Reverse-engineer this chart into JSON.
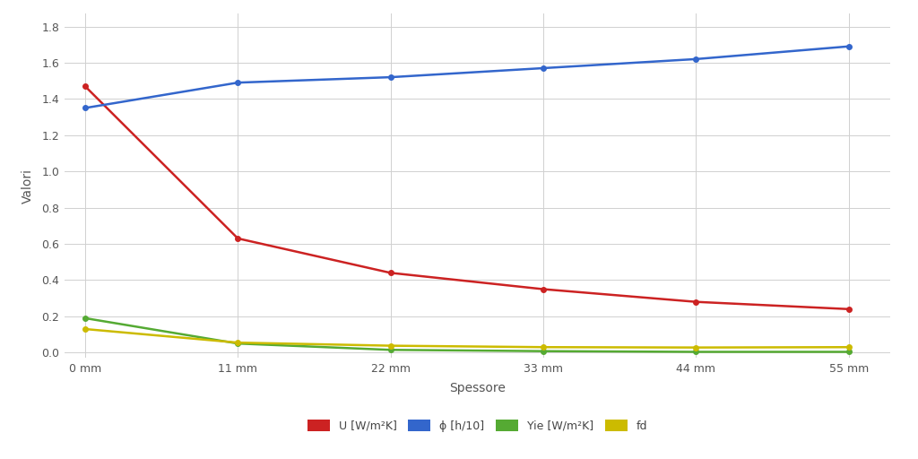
{
  "x": [
    0,
    11,
    22,
    33,
    44,
    55
  ],
  "U": [
    1.47,
    0.63,
    0.44,
    0.35,
    0.28,
    0.24
  ],
  "phi": [
    1.35,
    1.49,
    1.52,
    1.57,
    1.62,
    1.69
  ],
  "Yie": [
    0.19,
    0.05,
    0.015,
    0.008,
    0.004,
    0.004
  ],
  "fd": [
    0.13,
    0.055,
    0.038,
    0.03,
    0.028,
    0.03
  ],
  "colors": {
    "U": "#cc2222",
    "phi": "#3366cc",
    "Yie": "#55aa33",
    "fd": "#ccbb00"
  },
  "xlabel": "Spessore",
  "ylabel": "Valori",
  "xtick_labels": [
    "0 mm",
    "11 mm",
    "22 mm",
    "33 mm",
    "44 mm",
    "55 mm"
  ],
  "ylim": [
    -0.03,
    1.87
  ],
  "yticks": [
    0.0,
    0.2,
    0.4,
    0.6,
    0.8,
    1.0,
    1.2,
    1.4,
    1.6,
    1.8
  ],
  "legend_labels": [
    "U [W/m²K]",
    "ϕ [h/10]",
    "Yie [W/m²K]",
    "fd"
  ],
  "background_color": "#ffffff",
  "grid_color": "#d0d0d0",
  "linewidth": 1.8,
  "markersize": 4
}
